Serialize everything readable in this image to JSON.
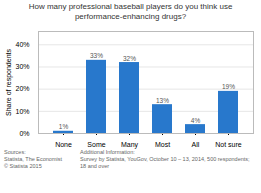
{
  "chart_data": {
    "type": "bar",
    "title": "How many professional baseball players do you think use\nperformance-enhancing drugs?",
    "categories": [
      "None",
      "Some",
      "Many",
      "Most",
      "All",
      "Not sure"
    ],
    "values": [
      1,
      33,
      32,
      13,
      4,
      19
    ],
    "value_labels": [
      "1%",
      "33%",
      "32%",
      "13%",
      "4%",
      "19%"
    ],
    "data_labels": true,
    "color": "#2878cc",
    "ylabel": "Share of respondents",
    "ylim": [
      0,
      46
    ],
    "yticks": [
      {
        "value": 0,
        "label": "0%"
      },
      {
        "value": 10,
        "label": "10%"
      },
      {
        "value": 20,
        "label": "20%"
      },
      {
        "value": 30,
        "label": "30%"
      },
      {
        "value": 40,
        "label": "40%"
      }
    ],
    "grid": true,
    "annotations": [
      "Sources:\nStatista, The Economist\n© Statista 2015",
      "Additional Information:\nSurvey by Statista, YouGov, October 10 – 13, 2014, 500 respondents; 18 and over"
    ]
  }
}
